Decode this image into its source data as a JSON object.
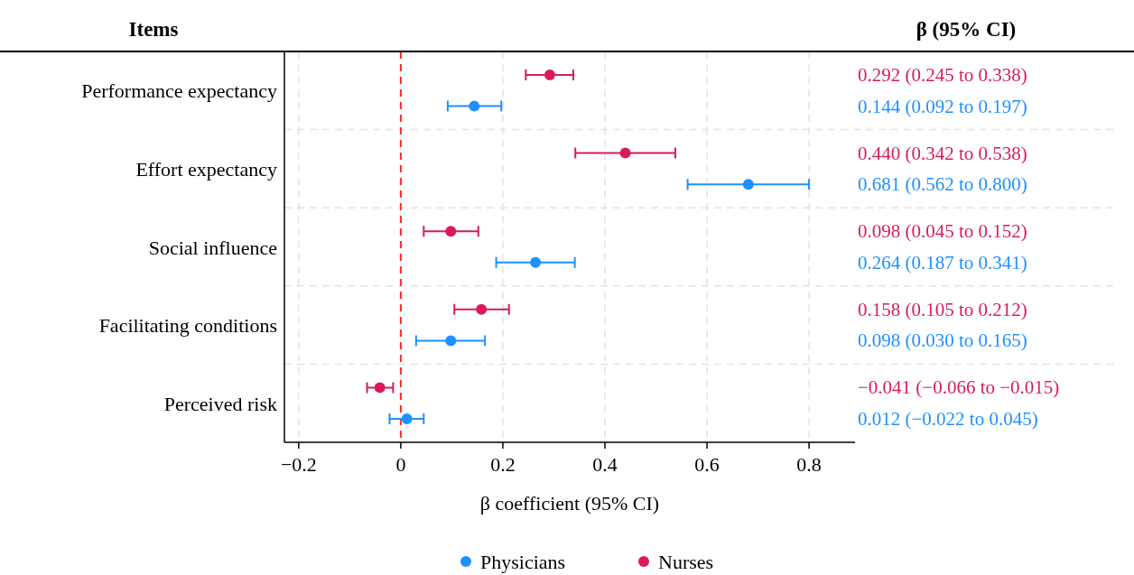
{
  "chart_data": {
    "type": "scatter",
    "orientation": "horizontal",
    "ylabel": "Items",
    "xlabel": "β coefficient (95% CI)",
    "annotations": [
      "β (95% CI)",
      "0.292 (0.245 to 0.338)",
      "0.144 (0.092 to 0.197)",
      "0.440 (0.342 to 0.538)",
      "0.681 (0.562 to 0.800)",
      "0.098 (0.045 to 0.152)",
      "0.264 (0.187 to 0.341)",
      "0.158 (0.105 to 0.212)",
      "0.098 (0.030 to 0.165)",
      "−0.041 (−0.066 to −0.015)",
      "0.012 (−0.022 to 0.045)"
    ],
    "categories": [
      "Performance expectancy",
      "Effort expectancy",
      "Social influence",
      "Facilitating conditions",
      "Perceived risk"
    ],
    "series": [
      {
        "name": "Physicians",
        "color": "#1e90ff",
        "values": [
          0.144,
          0.681,
          0.264,
          0.098,
          0.012
        ],
        "errors": [
          [
            0.092,
            0.197
          ],
          [
            0.562,
            0.8
          ],
          [
            0.187,
            0.341
          ],
          [
            0.03,
            0.165
          ],
          [
            -0.022,
            0.045
          ]
        ]
      },
      {
        "name": "Nurses",
        "color": "#d81b60",
        "values": [
          0.292,
          0.44,
          0.098,
          0.158,
          -0.041
        ],
        "errors": [
          [
            0.245,
            0.338
          ],
          [
            0.342,
            0.538
          ],
          [
            0.045,
            0.152
          ],
          [
            0.105,
            0.212
          ],
          [
            -0.066,
            -0.015
          ]
        ]
      }
    ],
    "xlim": [
      -0.228,
      0.89
    ],
    "xticks": [
      {
        "value": -0.2,
        "label": "−0.2"
      },
      0,
      0.2,
      0.4,
      0.6,
      0.8
    ],
    "ref_lines": [
      {
        "axis": "x",
        "value": 0,
        "color": "#ff2a2a",
        "line_style": "dashed"
      }
    ],
    "grid": true,
    "legend": "bottom",
    "marker": "circle"
  }
}
